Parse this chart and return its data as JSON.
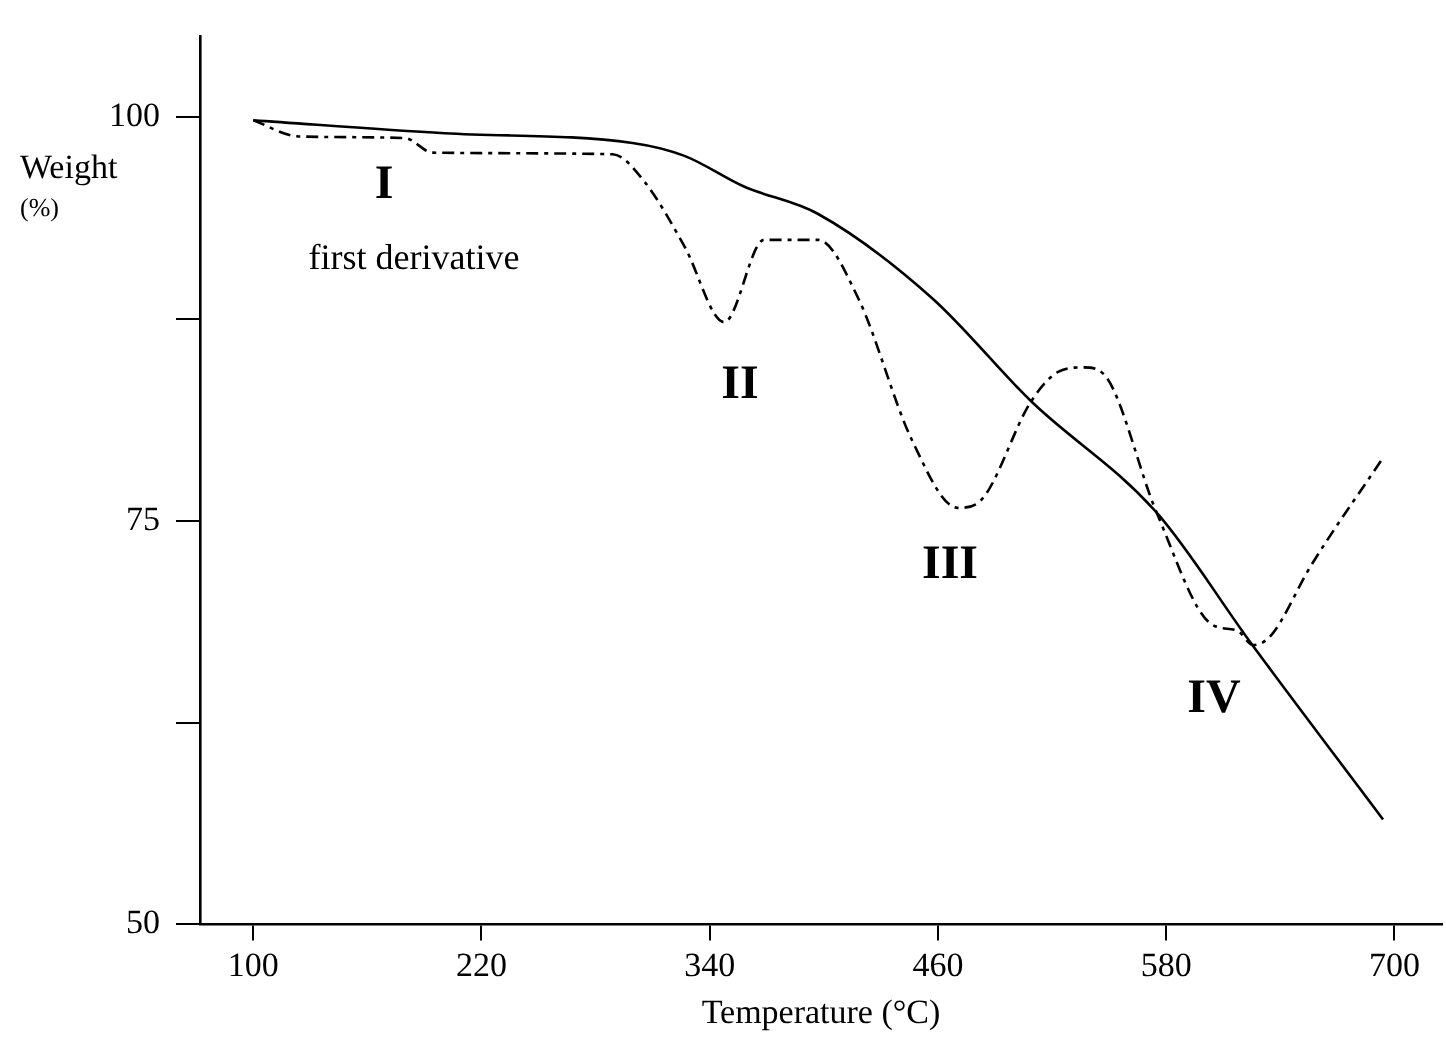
{
  "chart_data": {
    "type": "line",
    "xlabel": "Temperature (°C)",
    "ylabel": "Weight (%)",
    "xlim": [
      72,
      725
    ],
    "xticks": [
      100,
      220,
      340,
      460,
      580,
      700
    ],
    "ylim": [
      50,
      105
    ],
    "yticks": [
      100,
      {
        "value": 87.5,
        "label": null
      },
      75,
      {
        "value": 62.5,
        "label": null
      },
      50
    ],
    "grid": false,
    "legend": false,
    "marker": "none",
    "series": [
      {
        "color": "#000000",
        "line_style": "solid",
        "x": [
          100,
          200.7,
          299.4,
          326.7,
          358,
          397,
          456.8,
          509,
          575,
          624.7,
          694
        ],
        "values": [
          99.8,
          99.0,
          98.4,
          97.6,
          95.7,
          94.0,
          88.8,
          82.4,
          75.5,
          67.4,
          56.5
        ]
      },
      {
        "color": "#000000",
        "line_style": "dashed",
        "x": [
          100,
          124.1,
          179.7,
          194.4,
          288.9,
          305.7,
          326.7,
          347.6,
          368.6,
          397,
          418,
          446.3,
          470.4,
          481,
          509,
          522.9,
          536.5,
          547,
          575,
          603.7,
          617.3,
          625.7,
          635.1,
          656,
          694
        ],
        "values": [
          99.8,
          98.8,
          98.7,
          97.8,
          97.7,
          96.0,
          92.0,
          87.3,
          92.4,
          92.4,
          88.8,
          80.0,
          75.8,
          76.1,
          82.4,
          84.2,
          84.5,
          84.1,
          75.5,
          68.6,
          68.2,
          67.3,
          67.9,
          72.2,
          78.9
        ]
      }
    ],
    "annotations": [
      "I",
      "first derivative",
      "II",
      "III",
      "IV"
    ]
  }
}
